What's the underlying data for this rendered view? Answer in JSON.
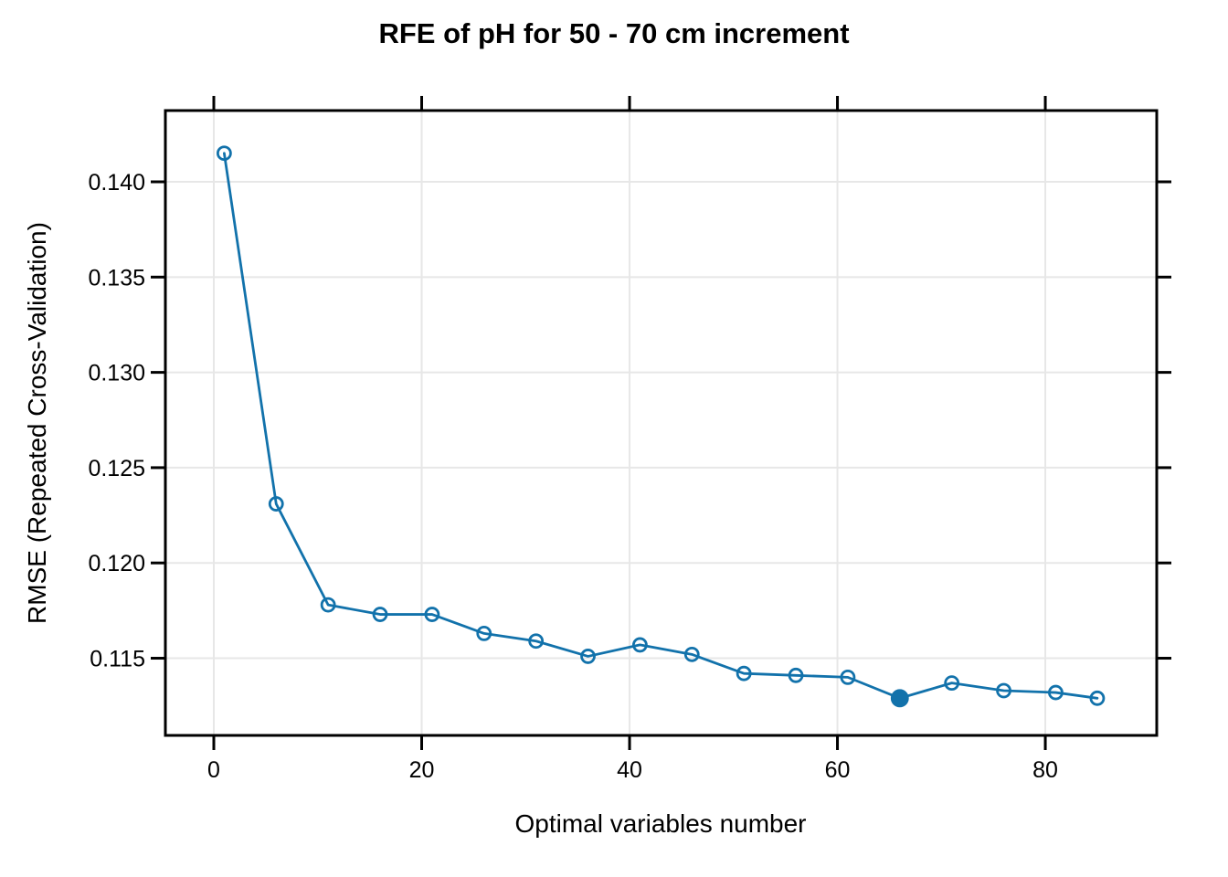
{
  "chart_data": {
    "type": "line",
    "title": "RFE of pH for 50 - 70 cm increment",
    "xlabel": "Optimal variables number",
    "ylabel": "RMSE (Repeated Cross-Validation)",
    "x": [
      1,
      6,
      11,
      16,
      21,
      26,
      31,
      36,
      41,
      46,
      51,
      56,
      61,
      66,
      71,
      76,
      81,
      85
    ],
    "y": [
      0.1415,
      0.1231,
      0.1178,
      0.1173,
      0.1173,
      0.1163,
      0.1159,
      0.1151,
      0.1157,
      0.1152,
      0.1142,
      0.1141,
      0.114,
      0.1129,
      0.1137,
      0.1133,
      0.1132,
      0.1129
    ],
    "optimal_index": 13,
    "optimal_x": 66,
    "marker_style": "open-circle",
    "optimal_marker_style": "filled-circle",
    "xtick_values": [
      0,
      20,
      40,
      60,
      80
    ],
    "xtick_labels": [
      "0",
      "20",
      "40",
      "60",
      "80"
    ],
    "ytick_values": [
      0.115,
      0.12,
      0.125,
      0.13,
      0.135,
      0.14
    ],
    "ytick_labels": [
      "0.115",
      "0.120",
      "0.125",
      "0.130",
      "0.135",
      "0.140"
    ],
    "xlim": [
      -4.66,
      90.72
    ],
    "ylim": [
      0.11095,
      0.14374
    ],
    "grid": true,
    "legend": null,
    "colors": {
      "series": "#1272ab",
      "grid": "#e7e7e7",
      "axis": "#000000",
      "background": "#ffffff"
    }
  }
}
